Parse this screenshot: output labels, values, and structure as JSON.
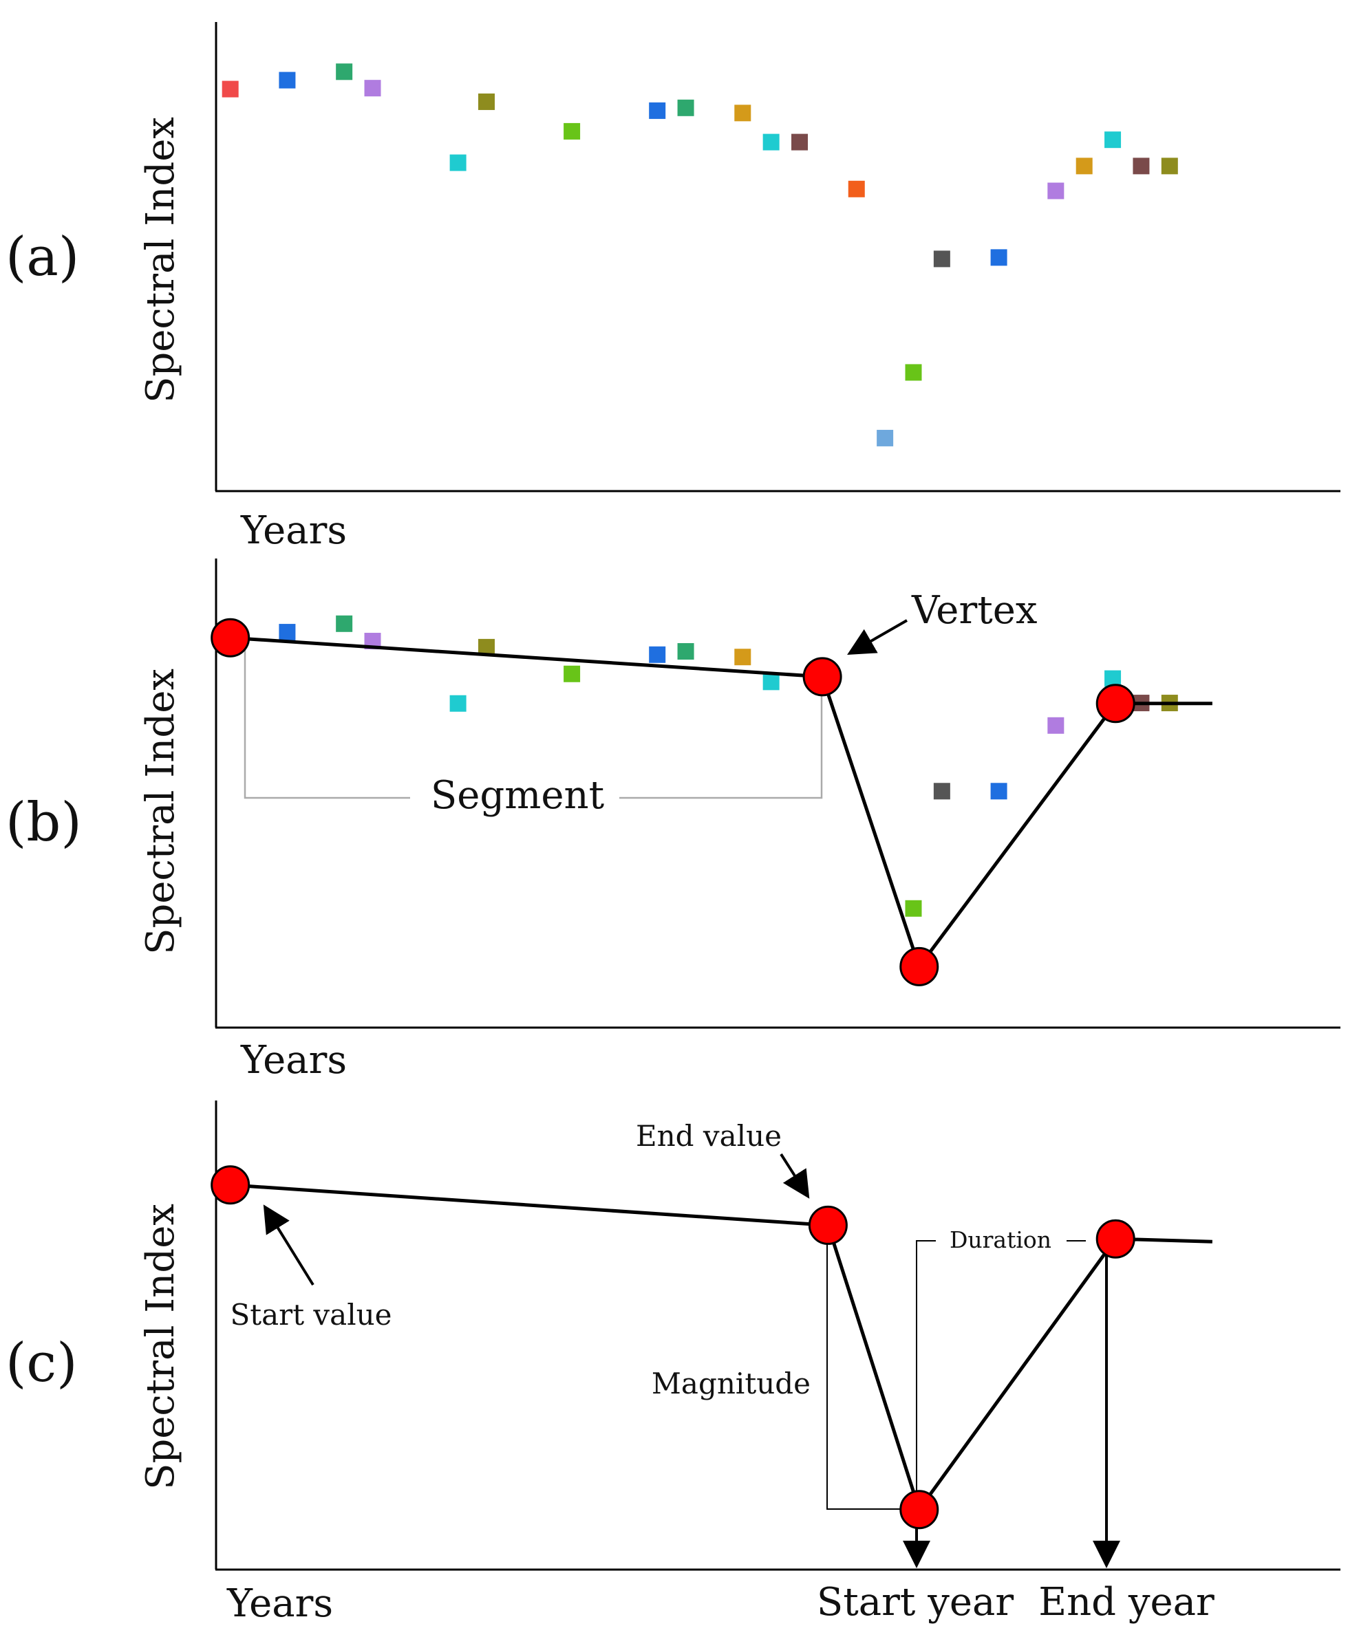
{
  "chart_data": [
    {
      "type": "scatter",
      "panel": "(a)",
      "xlabel": "Years",
      "ylabel": "Spectral Index",
      "xlim": [
        0.5,
        40
      ],
      "ylim": [
        0,
        100
      ],
      "points": [
        {
          "x": 1,
          "y": 85.7,
          "color": "#F04A4A"
        },
        {
          "x": 3,
          "y": 87.6,
          "color": "#1F6FE0"
        },
        {
          "x": 5,
          "y": 89.4,
          "color": "#2EA86E"
        },
        {
          "x": 6,
          "y": 85.9,
          "color": "#B07CE0"
        },
        {
          "x": 9,
          "y": 70.0,
          "color": "#1FCBD0"
        },
        {
          "x": 10,
          "y": 83.0,
          "color": "#8E8C1E"
        },
        {
          "x": 13,
          "y": 76.7,
          "color": "#68C418"
        },
        {
          "x": 16,
          "y": 81.1,
          "color": "#1F6FE0"
        },
        {
          "x": 17,
          "y": 81.7,
          "color": "#2EA86E"
        },
        {
          "x": 19,
          "y": 80.6,
          "color": "#D49A1A"
        },
        {
          "x": 20,
          "y": 74.4,
          "color": "#1FCBD0"
        },
        {
          "x": 21,
          "y": 74.4,
          "color": "#7A4A4A"
        },
        {
          "x": 23,
          "y": 64.4,
          "color": "#F25F1C"
        },
        {
          "x": 24,
          "y": 11.3,
          "color": "#6EA8DD"
        },
        {
          "x": 25,
          "y": 25.3,
          "color": "#68C418"
        },
        {
          "x": 26,
          "y": 49.5,
          "color": "#555555"
        },
        {
          "x": 28,
          "y": 49.8,
          "color": "#1F6FE0"
        },
        {
          "x": 30,
          "y": 64.0,
          "color": "#B07CE0"
        },
        {
          "x": 31,
          "y": 69.3,
          "color": "#D49A1A"
        },
        {
          "x": 32,
          "y": 74.9,
          "color": "#1FCBD0"
        },
        {
          "x": 33,
          "y": 69.3,
          "color": "#7A4A4A"
        },
        {
          "x": 34,
          "y": 69.3,
          "color": "#8E8C1E"
        }
      ]
    },
    {
      "type": "line",
      "panel": "(b)",
      "xlabel": "Years",
      "ylabel": "Spectral Index",
      "xlim": [
        0.5,
        40
      ],
      "ylim": [
        0,
        100
      ],
      "annotations": [
        "Vertex",
        "Segment"
      ],
      "vertices": [
        {
          "x": 1,
          "y": 83.1
        },
        {
          "x": 21.8,
          "y": 74.8
        },
        {
          "x": 25.2,
          "y": 13.0
        },
        {
          "x": 32.1,
          "y": 69.1
        }
      ],
      "line_end": {
        "x": 35.5,
        "y": 69.1
      },
      "points": [
        {
          "x": 3,
          "y": 84.3,
          "color": "#1F6FE0"
        },
        {
          "x": 5,
          "y": 86.1,
          "color": "#2EA86E"
        },
        {
          "x": 6,
          "y": 82.4,
          "color": "#B07CE0"
        },
        {
          "x": 9,
          "y": 69.1,
          "color": "#1FCBD0"
        },
        {
          "x": 10,
          "y": 81.1,
          "color": "#8E8C1E"
        },
        {
          "x": 13,
          "y": 75.4,
          "color": "#68C418"
        },
        {
          "x": 16,
          "y": 79.5,
          "color": "#1F6FE0"
        },
        {
          "x": 17,
          "y": 80.2,
          "color": "#2EA86E"
        },
        {
          "x": 19,
          "y": 79.0,
          "color": "#D49A1A"
        },
        {
          "x": 20,
          "y": 73.7,
          "color": "#1FCBD0"
        },
        {
          "x": 25,
          "y": 25.4,
          "color": "#68C418"
        },
        {
          "x": 26,
          "y": 50.4,
          "color": "#555555"
        },
        {
          "x": 28,
          "y": 50.4,
          "color": "#1F6FE0"
        },
        {
          "x": 30,
          "y": 64.4,
          "color": "#B07CE0"
        },
        {
          "x": 32,
          "y": 74.4,
          "color": "#1FCBD0"
        },
        {
          "x": 33,
          "y": 69.2,
          "color": "#7A4A4A"
        },
        {
          "x": 34,
          "y": 69.2,
          "color": "#8E8C1E"
        }
      ]
    },
    {
      "type": "line",
      "panel": "(c)",
      "xlabel": "Years",
      "ylabel": "Spectral Index",
      "xlim": [
        0.5,
        40
      ],
      "ylim": [
        0,
        100
      ],
      "annotations": [
        "End value",
        "Start value",
        "Duration",
        "Magnitude",
        "Start year",
        "End year"
      ],
      "vertices": [
        {
          "x": 1,
          "y": 82.0
        },
        {
          "x": 22.0,
          "y": 73.4
        },
        {
          "x": 25.2,
          "y": 12.8
        },
        {
          "x": 32.1,
          "y": 70.5
        }
      ],
      "line_end": {
        "x": 35.5,
        "y": 69.9
      }
    }
  ]
}
